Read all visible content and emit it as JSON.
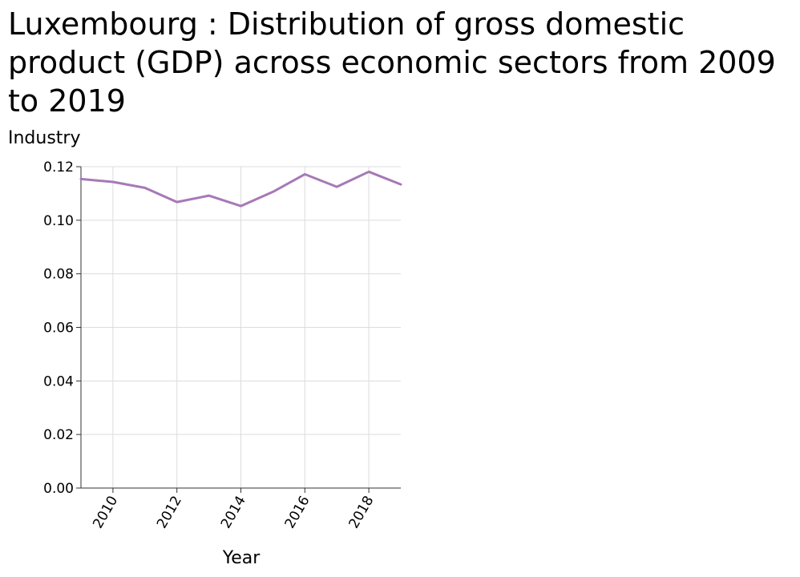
{
  "chart_data": {
    "type": "line",
    "title": "Luxembourg : Distribution of gross domestic product (GDP) across economic sectors from 2009 to 2019",
    "ylabel": "Industry",
    "xlabel": "Year",
    "xlim": [
      2009,
      2019
    ],
    "ylim": [
      0,
      0.12
    ],
    "x_ticks": [
      2010,
      2012,
      2014,
      2016,
      2018
    ],
    "y_ticks": [
      "0.00",
      "0.02",
      "0.04",
      "0.06",
      "0.08",
      "0.10",
      "0.12"
    ],
    "grid": true,
    "series": [
      {
        "color": "#a679b7",
        "x": [
          2009,
          2010,
          2011,
          2012,
          2013,
          2014,
          2015,
          2016,
          2017,
          2018,
          2019
        ],
        "values": [
          0.1154,
          0.1143,
          0.1121,
          0.1068,
          0.1092,
          0.1053,
          0.1106,
          0.1172,
          0.1125,
          0.1181,
          0.1134
        ]
      }
    ]
  }
}
